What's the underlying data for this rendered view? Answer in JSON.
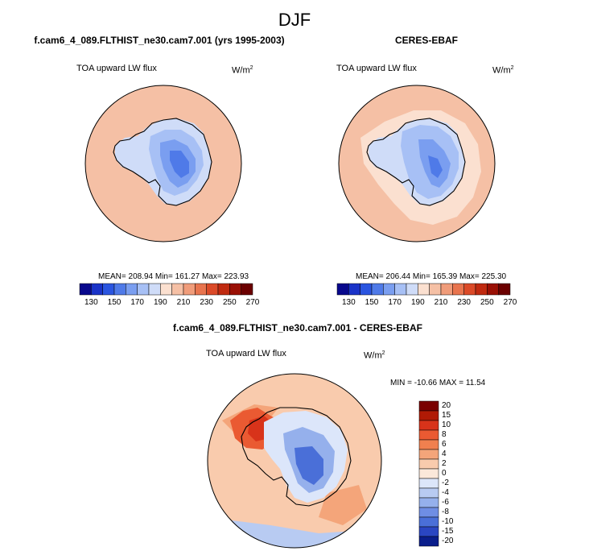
{
  "page": {
    "title": "DJF"
  },
  "chart_data": [
    {
      "type": "heatmap",
      "panel": "model",
      "title": "f.cam6_4_089.FLTHIST_ne30.cam7.001 (yrs 1995-2003)",
      "variable": "TOA upward LW flux",
      "units": "W/m",
      "units_exp": "2",
      "stats": "MEAN= 208.94  Min= 161.27  Max= 223.93",
      "mean": 208.94,
      "min": 161.27,
      "max": 223.93,
      "colorbar_levels": [
        130,
        140,
        150,
        160,
        170,
        180,
        190,
        200,
        210,
        220,
        230,
        240,
        250,
        260,
        270
      ],
      "colorbar_labels": [
        "130",
        "150",
        "170",
        "190",
        "210",
        "230",
        "250",
        "270"
      ]
    },
    {
      "type": "heatmap",
      "panel": "obs",
      "title": "CERES-EBAF",
      "variable": "TOA upward LW flux",
      "units": "W/m",
      "units_exp": "2",
      "stats": "MEAN= 206.44  Min= 165.39  Max= 225.30",
      "mean": 206.44,
      "min": 165.39,
      "max": 225.3,
      "colorbar_levels": [
        130,
        140,
        150,
        160,
        170,
        180,
        190,
        200,
        210,
        220,
        230,
        240,
        250,
        260,
        270
      ],
      "colorbar_labels": [
        "130",
        "150",
        "170",
        "190",
        "210",
        "230",
        "250",
        "270"
      ]
    },
    {
      "type": "heatmap",
      "panel": "difference",
      "title": "f.cam6_4_089.FLTHIST_ne30.cam7.001 - CERES-EBAF",
      "variable": "TOA upward LW flux",
      "units": "W/m",
      "units_exp": "2",
      "stats": "MIN = -10.66 MAX =  11.54",
      "min": -10.66,
      "max": 11.54,
      "colorbar_labels": [
        "20",
        "15",
        "10",
        "8",
        "6",
        "4",
        "2",
        "0",
        "-2",
        "-4",
        "-6",
        "-8",
        "-10",
        "-15",
        "-20"
      ]
    }
  ],
  "colors": {
    "seq": [
      "#08088c",
      "#1a33c8",
      "#2a55e0",
      "#4f7ae8",
      "#7a9ef0",
      "#a7c0f5",
      "#cfdcf8",
      "#fbe0d0",
      "#f5c0a5",
      "#f09c7a",
      "#e8744e",
      "#db4a28",
      "#c02a10",
      "#9a1005",
      "#6b0000"
    ],
    "div": [
      "#7a0000",
      "#b01a05",
      "#d8331a",
      "#ea5a32",
      "#f0804f",
      "#f4a57a",
      "#f9cbad",
      "#fbe8da",
      "#dce6fa",
      "#b8cbf2",
      "#95b0ec",
      "#6f8ee4",
      "#4a6fd8",
      "#2a46c2",
      "#0a1e8c"
    ]
  }
}
